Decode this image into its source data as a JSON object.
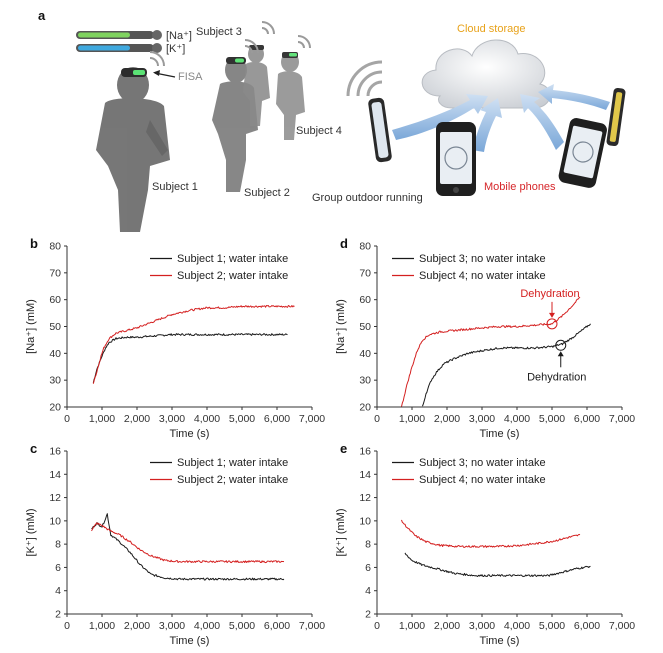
{
  "panel_a": {
    "label": "a",
    "na_label": "[Na⁺]",
    "k_label": "[K⁺]",
    "fisa_label": "FISA",
    "subject1": "Subject 1",
    "subject2": "Subject 2",
    "subject3": "Subject 3",
    "subject4": "Subject 4",
    "cloud_label": "Cloud storage",
    "phones_label": "Mobile phones",
    "group_label": "Group outdoor running",
    "colors": {
      "na": "#7fd35f",
      "k": "#3fa9df",
      "cloud": "#e8a21a",
      "phones": "#d6262a"
    }
  },
  "chart_data": [
    {
      "panel": "b",
      "type": "line",
      "xlabel": "Time (s)",
      "ylabel": "[Na⁺] (mM)",
      "xlim": [
        0,
        7000
      ],
      "ylim": [
        20,
        80
      ],
      "xticks": [
        0,
        1000,
        2000,
        3000,
        4000,
        5000,
        6000,
        7000
      ],
      "xtick_labels": [
        "0",
        "1,000",
        "2,000",
        "3,000",
        "4,000",
        "5,000",
        "6,000",
        "7,000"
      ],
      "yticks": [
        20,
        30,
        40,
        50,
        60,
        70,
        80
      ],
      "series": [
        {
          "name": "Subject 1; water intake",
          "color": "#1a1a1a",
          "x": [
            750,
            850,
            1000,
            1100,
            1200,
            1400,
            1700,
            2000,
            2500,
            3000,
            3500,
            4000,
            4500,
            5000,
            5500,
            6000,
            6300
          ],
          "y": [
            29,
            34,
            39,
            42,
            44,
            45.5,
            46,
            46,
            46.5,
            47,
            47,
            47,
            47,
            47,
            47,
            47,
            47
          ]
        },
        {
          "name": "Subject 2; water intake",
          "color": "#d42020",
          "x": [
            750,
            850,
            950,
            1050,
            1200,
            1400,
            1700,
            2000,
            2500,
            3000,
            3500,
            4000,
            4500,
            5000,
            5500,
            6000,
            6500
          ],
          "y": [
            29,
            33,
            38,
            42,
            45.5,
            47.5,
            48.5,
            49.5,
            52,
            54.5,
            56,
            57,
            57,
            57.5,
            57.5,
            57.5,
            57.5
          ]
        }
      ]
    },
    {
      "panel": "c",
      "type": "line",
      "xlabel": "Time (s)",
      "ylabel": "[K⁺] (mM)",
      "xlim": [
        0,
        7000
      ],
      "ylim": [
        2,
        16
      ],
      "xticks": [
        0,
        1000,
        2000,
        3000,
        4000,
        5000,
        6000,
        7000
      ],
      "xtick_labels": [
        "0",
        "1,000",
        "2,000",
        "3,000",
        "4,000",
        "5,000",
        "6,000",
        "7,000"
      ],
      "yticks": [
        2,
        4,
        6,
        8,
        10,
        12,
        14,
        16
      ],
      "series": [
        {
          "name": "Subject 1; water intake",
          "color": "#1a1a1a",
          "x": [
            700,
            850,
            1000,
            1100,
            1150,
            1250,
            1500,
            1800,
            2100,
            2400,
            2800,
            3200,
            3600,
            4000,
            4500,
            5000,
            5500,
            6200
          ],
          "y": [
            9.3,
            9.8,
            9.5,
            10.2,
            10.6,
            8.8,
            8.2,
            7.3,
            6.2,
            5.4,
            5.1,
            5.0,
            5.0,
            5.0,
            5.0,
            5.0,
            5.0,
            5.0
          ]
        },
        {
          "name": "Subject 2; water intake",
          "color": "#d42020",
          "x": [
            700,
            850,
            1000,
            1200,
            1500,
            1800,
            2100,
            2400,
            2800,
            3200,
            3600,
            4000,
            4500,
            5000,
            5500,
            6200
          ],
          "y": [
            9.2,
            9.8,
            9.6,
            9.2,
            8.8,
            8.2,
            7.5,
            7.0,
            6.6,
            6.5,
            6.5,
            6.5,
            6.5,
            6.5,
            6.5,
            6.5
          ]
        }
      ]
    },
    {
      "panel": "d",
      "type": "line",
      "xlabel": "Time (s)",
      "ylabel": "[Na⁺] (mM)",
      "xlim": [
        0,
        7000
      ],
      "ylim": [
        20,
        80
      ],
      "xticks": [
        0,
        1000,
        2000,
        3000,
        4000,
        5000,
        6000,
        7000
      ],
      "xtick_labels": [
        "0",
        "1,000",
        "2,000",
        "3,000",
        "4,000",
        "5,000",
        "6,000",
        "7,000"
      ],
      "yticks": [
        20,
        30,
        40,
        50,
        60,
        70,
        80
      ],
      "annotations": [
        {
          "text": "Dehydration",
          "x": 5000,
          "y": 51,
          "color": "#d42020"
        },
        {
          "text": "Dehydration",
          "x": 5250,
          "y": 43,
          "color": "#1a1a1a"
        }
      ],
      "series": [
        {
          "name": "Subject 3; no water intake",
          "color": "#1a1a1a",
          "x": [
            1300,
            1400,
            1550,
            1700,
            1900,
            2200,
            2600,
            3000,
            3500,
            4000,
            4500,
            5000,
            5300,
            5600,
            5900,
            6100
          ],
          "y": [
            20,
            25,
            30,
            33,
            36,
            38,
            40,
            41,
            42,
            42,
            42,
            42.5,
            43.5,
            46,
            49,
            51
          ]
        },
        {
          "name": "Subject 4; no water intake",
          "color": "#d42020",
          "x": [
            700,
            850,
            1000,
            1150,
            1300,
            1500,
            1800,
            2200,
            2600,
            3000,
            3500,
            4000,
            4500,
            5000,
            5300,
            5600,
            5800
          ],
          "y": [
            20,
            28,
            35,
            41,
            45,
            47,
            48,
            48.5,
            49,
            49.5,
            50,
            50,
            50.5,
            51,
            54,
            58,
            61
          ]
        }
      ]
    },
    {
      "panel": "e",
      "type": "line",
      "xlabel": "Time (s)",
      "ylabel": "[K⁺] (mM)",
      "xlim": [
        0,
        7000
      ],
      "ylim": [
        2,
        16
      ],
      "xticks": [
        0,
        1000,
        2000,
        3000,
        4000,
        5000,
        6000,
        7000
      ],
      "xtick_labels": [
        "0",
        "1,000",
        "2,000",
        "3,000",
        "4,000",
        "5,000",
        "6,000",
        "7,000"
      ],
      "yticks": [
        2,
        4,
        6,
        8,
        10,
        12,
        14,
        16
      ],
      "series": [
        {
          "name": "Subject 3; no water intake",
          "color": "#1a1a1a",
          "x": [
            800,
            1000,
            1300,
            1700,
            2200,
            2800,
            3500,
            4200,
            4900,
            5300,
            5700,
            6100
          ],
          "y": [
            7.2,
            6.6,
            6.2,
            5.9,
            5.5,
            5.3,
            5.3,
            5.3,
            5.3,
            5.6,
            5.9,
            6.1
          ]
        },
        {
          "name": "Subject 4; no water intake",
          "color": "#d42020",
          "x": [
            700,
            900,
            1100,
            1400,
            1800,
            2300,
            2900,
            3500,
            4100,
            4700,
            5100,
            5500,
            5800
          ],
          "y": [
            10.0,
            9.3,
            8.7,
            8.2,
            7.9,
            7.8,
            7.8,
            7.8,
            7.9,
            8.1,
            8.3,
            8.6,
            8.8
          ]
        }
      ]
    }
  ]
}
